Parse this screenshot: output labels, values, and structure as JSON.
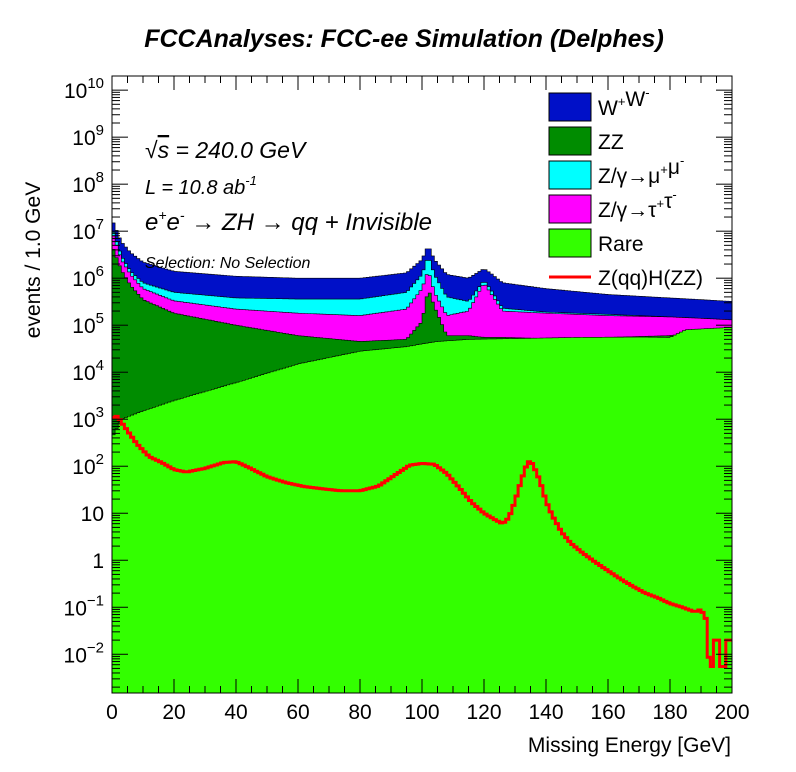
{
  "chart_data": {
    "type": "area",
    "title": "FCCAnalyses: FCC-ee Simulation (Delphes)",
    "xlabel": "Missing Energy [GeV]",
    "ylabel": "events / 1.0 GeV",
    "xlim": [
      0,
      200
    ],
    "ylim": [
      0.0015,
      20000000000
    ],
    "yscale": "log",
    "grid": false,
    "legend_position": "top-right",
    "stacked": true,
    "x_ticks": [
      "0",
      "20",
      "40",
      "60",
      "80",
      "100",
      "120",
      "140",
      "160",
      "180",
      "200"
    ],
    "y_ticks": [
      {
        "value": 0.01,
        "base": "10",
        "exp": "−2"
      },
      {
        "value": 0.1,
        "base": "10",
        "exp": "−1"
      },
      {
        "value": 1,
        "base": "1",
        "exp": ""
      },
      {
        "value": 10,
        "base": "10",
        "exp": ""
      },
      {
        "value": 100,
        "base": "10",
        "exp": "2"
      },
      {
        "value": 1000,
        "base": "10",
        "exp": "3"
      },
      {
        "value": 10000,
        "base": "10",
        "exp": "4"
      },
      {
        "value": 100000,
        "base": "10",
        "exp": "5"
      },
      {
        "value": 1000000,
        "base": "10",
        "exp": "6"
      },
      {
        "value": 10000000,
        "base": "10",
        "exp": "7"
      },
      {
        "value": 100000000,
        "base": "10",
        "exp": "8"
      },
      {
        "value": 1000000000,
        "base": "10",
        "exp": "9"
      },
      {
        "value": 10000000000,
        "base": "10",
        "exp": "10"
      }
    ],
    "stack_order": [
      "Rare",
      "ZZ",
      "Z/γ→τ+τ-",
      "Z/γ→μ+μ-",
      "W+W-"
    ],
    "series": [
      {
        "name": "W+W-",
        "legend": {
          "base": "W",
          "sup1": "+",
          "mid": "W",
          "sup2": "-"
        },
        "color": "#0010c8",
        "kind": "stack",
        "points": [
          [
            0,
            18000000.0
          ],
          [
            3,
            6000000.0
          ],
          [
            6,
            3500000.0
          ],
          [
            10,
            2200000.0
          ],
          [
            20,
            1400000.0
          ],
          [
            40,
            1100000.0
          ],
          [
            60,
            1000000.0
          ],
          [
            80,
            1000000.0
          ],
          [
            95,
            1300000.0
          ],
          [
            100,
            2500000.0
          ],
          [
            102,
            5000000.0
          ],
          [
            104,
            2500000.0
          ],
          [
            108,
            1200000.0
          ],
          [
            115,
            1000000.0
          ],
          [
            120,
            1600000.0
          ],
          [
            122,
            1300000.0
          ],
          [
            126,
            800000.0
          ],
          [
            140,
            600000.0
          ],
          [
            160,
            450000.0
          ],
          [
            180,
            380000.0
          ],
          [
            190,
            350000.0
          ],
          [
            200,
            320000.0
          ]
        ]
      },
      {
        "name": "Z/γ→μ+μ-",
        "legend": {
          "base": "Z/γ→μ",
          "sup1": "+",
          "mid": "μ",
          "sup2": "-"
        },
        "color": "#00ffff",
        "kind": "stack",
        "points": [
          [
            0,
            12000000.0
          ],
          [
            3,
            3000000.0
          ],
          [
            6,
            1400000.0
          ],
          [
            10,
            800000.0
          ],
          [
            20,
            500000.0
          ],
          [
            40,
            380000.0
          ],
          [
            60,
            360000.0
          ],
          [
            80,
            360000.0
          ],
          [
            95,
            500000.0
          ],
          [
            100,
            1200000.0
          ],
          [
            102,
            3000000.0
          ],
          [
            104,
            1200000.0
          ],
          [
            108,
            400000.0
          ],
          [
            115,
            320000.0
          ],
          [
            120,
            900000.0
          ],
          [
            122,
            600000.0
          ],
          [
            126,
            230000.0
          ],
          [
            140,
            190000.0
          ],
          [
            160,
            170000.0
          ],
          [
            180,
            150000.0
          ],
          [
            190,
            140000.0
          ],
          [
            200,
            130000.0
          ]
        ]
      },
      {
        "name": "Z/γ→τ+τ-",
        "legend": {
          "base": "Z/γ→τ",
          "sup1": "+",
          "mid": "τ",
          "sup2": "-"
        },
        "color": "#ff00ff",
        "kind": "stack",
        "points": [
          [
            0,
            10000000.0
          ],
          [
            3,
            2500000.0
          ],
          [
            6,
            1200000.0
          ],
          [
            10,
            600000.0
          ],
          [
            20,
            330000.0
          ],
          [
            40,
            220000.0
          ],
          [
            60,
            180000.0
          ],
          [
            80,
            160000.0
          ],
          [
            95,
            220000.0
          ],
          [
            100,
            600000.0
          ],
          [
            102,
            1500000.0
          ],
          [
            104,
            500000.0
          ],
          [
            108,
            160000.0
          ],
          [
            115,
            200000.0
          ],
          [
            120,
            800000.0
          ],
          [
            122,
            500000.0
          ],
          [
            126,
            200000.0
          ],
          [
            140,
            180000.0
          ],
          [
            160,
            160000.0
          ],
          [
            180,
            150000.0
          ],
          [
            190,
            140000.0
          ],
          [
            200,
            130000.0
          ]
        ]
      },
      {
        "name": "ZZ",
        "legend": {
          "base": "ZZ",
          "sup1": "",
          "mid": "",
          "sup2": ""
        },
        "color": "#008c00",
        "kind": "stack",
        "points": [
          [
            0,
            5000000.0
          ],
          [
            3,
            1500000.0
          ],
          [
            6,
            700000.0
          ],
          [
            10,
            350000.0
          ],
          [
            20,
            180000.0
          ],
          [
            40,
            100000.0
          ],
          [
            60,
            60000.0
          ],
          [
            80,
            45000.0
          ],
          [
            95,
            50000.0
          ],
          [
            100,
            120000.0
          ],
          [
            102,
            600000.0
          ],
          [
            104,
            250000.0
          ],
          [
            108,
            60000.0
          ],
          [
            115,
            60000.0
          ],
          [
            120,
            55000.0
          ],
          [
            126,
            55000.0
          ],
          [
            140,
            52000.0
          ],
          [
            160,
            55000.0
          ],
          [
            180,
            60000.0
          ],
          [
            190,
            70000.0
          ],
          [
            200,
            90000.0
          ]
        ]
      },
      {
        "name": "Rare",
        "legend": {
          "base": "Rare",
          "sup1": "",
          "mid": "",
          "sup2": ""
        },
        "color": "#33ff00",
        "kind": "stack",
        "points": [
          [
            0,
            400
          ],
          [
            3,
            1000.0
          ],
          [
            10,
            1500.0
          ],
          [
            20,
            2500.0
          ],
          [
            40,
            6000.0
          ],
          [
            60,
            15000.0
          ],
          [
            80,
            28000.0
          ],
          [
            95,
            35000.0
          ],
          [
            100,
            40000.0
          ],
          [
            105,
            45000.0
          ],
          [
            115,
            50000.0
          ],
          [
            130,
            52000.0
          ],
          [
            150,
            55000.0
          ],
          [
            170,
            56000.0
          ],
          [
            180,
            55000.0
          ],
          [
            185,
            80000.0
          ],
          [
            200,
            90000.0
          ]
        ]
      },
      {
        "name": "Z(qq)H(ZZ)",
        "legend": {
          "base": "Z(qq)H(ZZ)",
          "sup1": "",
          "mid": "",
          "sup2": ""
        },
        "color": "#ff0000",
        "kind": "line",
        "points": [
          [
            0,
            1000
          ],
          [
            1,
            1200
          ],
          [
            2,
            1100
          ],
          [
            4,
            700
          ],
          [
            8,
            300
          ],
          [
            12,
            160
          ],
          [
            16,
            120
          ],
          [
            20,
            85
          ],
          [
            24,
            75
          ],
          [
            30,
            90
          ],
          [
            36,
            120
          ],
          [
            40,
            125
          ],
          [
            44,
            95
          ],
          [
            50,
            60
          ],
          [
            56,
            45
          ],
          [
            62,
            37
          ],
          [
            68,
            33
          ],
          [
            74,
            30
          ],
          [
            80,
            30
          ],
          [
            86,
            38
          ],
          [
            92,
            70
          ],
          [
            96,
            105
          ],
          [
            100,
            115
          ],
          [
            104,
            110
          ],
          [
            108,
            70
          ],
          [
            112,
            35
          ],
          [
            116,
            17
          ],
          [
            120,
            10
          ],
          [
            124,
            7
          ],
          [
            126,
            6
          ],
          [
            128,
            8
          ],
          [
            130,
            18
          ],
          [
            132,
            50
          ],
          [
            134,
            120
          ],
          [
            135,
            130
          ],
          [
            136,
            100
          ],
          [
            138,
            50
          ],
          [
            140,
            18
          ],
          [
            142,
            9
          ],
          [
            145,
            4
          ],
          [
            148,
            2.3
          ],
          [
            152,
            1.4
          ],
          [
            156,
            0.9
          ],
          [
            160,
            0.6
          ],
          [
            164,
            0.4
          ],
          [
            168,
            0.28
          ],
          [
            172,
            0.2
          ],
          [
            176,
            0.16
          ],
          [
            180,
            0.12
          ],
          [
            184,
            0.1
          ],
          [
            188,
            0.08
          ],
          [
            190,
            0.09
          ],
          [
            192,
            0.05
          ],
          [
            193,
            0.0015
          ],
          [
            194,
            0.02
          ],
          [
            196,
            0.02
          ],
          [
            197,
            0.0015
          ],
          [
            198,
            0.02
          ],
          [
            200,
            0.02
          ]
        ]
      }
    ],
    "annotations": {
      "sqrt_s": {
        "prefix": "√",
        "over": "s",
        "suffix": " = 240.0 GeV"
      },
      "lumi": {
        "main": "L = 10.8 ab",
        "sup": "-1"
      },
      "process": {
        "p1": "e",
        "p1sup": "+",
        "p2": "e",
        "p2sup": "-",
        "rest": " → ZH → qq + Invisible"
      },
      "selection": "Selection: No Selection"
    }
  }
}
